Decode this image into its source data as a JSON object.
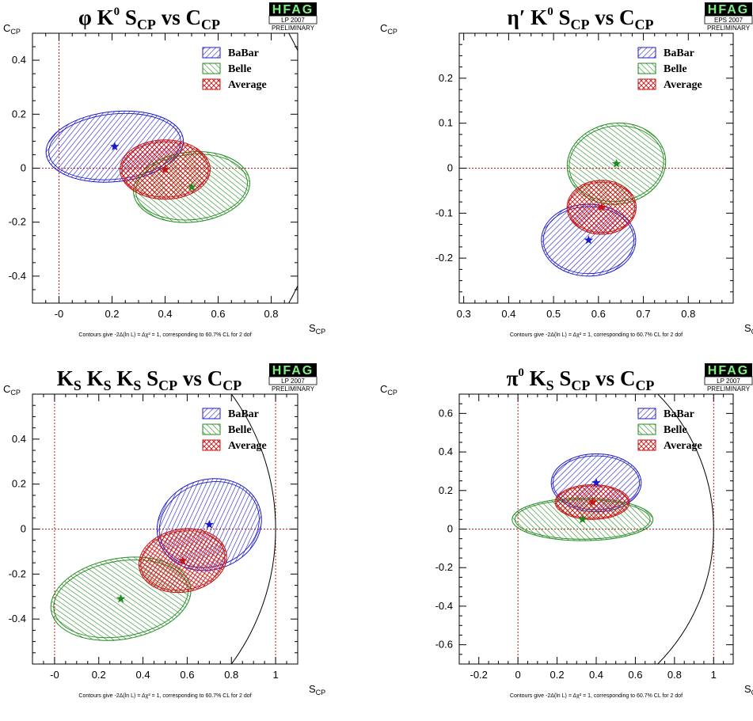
{
  "colors": {
    "babar": "#1a1acc",
    "belle": "#1f8a1f",
    "average": "#c81414",
    "guide": "#c81414"
  },
  "chart_data": [
    {
      "type": "scatter",
      "title": {
        "main": "φ K",
        "sup": "0",
        "s": "S",
        "s_sub": "CP",
        "vs": " vs ",
        "c": "C",
        "c_sub": "CP"
      },
      "badge": {
        "logo": "HFAG",
        "conf": "LP 2007",
        "status": "PRELIMINARY"
      },
      "xlabel": {
        "main": "S",
        "sub": "CP"
      },
      "ylabel": {
        "main": "C",
        "sub": "CP"
      },
      "xlim": [
        -0.1,
        0.9
      ],
      "ylim": [
        -0.5,
        0.5
      ],
      "xticks": [
        {
          "v": 0,
          "label": "-0"
        },
        {
          "v": 0.2,
          "label": "0.2"
        },
        {
          "v": 0.4,
          "label": "0.4"
        },
        {
          "v": 0.6,
          "label": "0.6"
        },
        {
          "v": 0.8,
          "label": "0.8"
        }
      ],
      "yticks": [
        {
          "v": -0.4,
          "label": "-0.4"
        },
        {
          "v": -0.2,
          "label": "-0.2"
        },
        {
          "v": 0,
          "label": "0"
        },
        {
          "v": 0.2,
          "label": "0.2"
        },
        {
          "v": 0.4,
          "label": "0.4"
        }
      ],
      "guide_lines": {
        "x": [
          0
        ],
        "y": [
          0
        ]
      },
      "unit_circle": true,
      "legend": [
        "BaBar",
        "Belle",
        "Average"
      ],
      "series": [
        {
          "name": "BaBar",
          "center": [
            0.21,
            0.08
          ],
          "rx": 0.26,
          "ry": 0.13,
          "tilt_deg": -6
        },
        {
          "name": "Belle",
          "center": [
            0.5,
            -0.07
          ],
          "rx": 0.22,
          "ry": 0.13,
          "tilt_deg": -6
        },
        {
          "name": "Average",
          "center": [
            0.4,
            -0.005
          ],
          "rx": 0.17,
          "ry": 0.11,
          "tilt_deg": 0
        }
      ],
      "note": "Contours give -2Δ(ln L) = Δχ² = 1, corresponding to 60.7% CL for 2 dof"
    },
    {
      "type": "scatter",
      "title": {
        "main": "η′ K",
        "sup": "0",
        "s": "S",
        "s_sub": "CP",
        "vs": " vs ",
        "c": "C",
        "c_sub": "CP"
      },
      "badge": {
        "logo": "HFAG",
        "conf": "EPS 2007",
        "status": "PRELIMINARY"
      },
      "xlabel": {
        "main": "S",
        "sub": "CP"
      },
      "ylabel": {
        "main": "C",
        "sub": "CP"
      },
      "xlim": [
        0.29,
        0.9
      ],
      "ylim": [
        -0.3,
        0.3
      ],
      "xticks": [
        {
          "v": 0.3,
          "label": "0.3"
        },
        {
          "v": 0.4,
          "label": "0.4"
        },
        {
          "v": 0.5,
          "label": "0.5"
        },
        {
          "v": 0.6,
          "label": "0.6"
        },
        {
          "v": 0.7,
          "label": "0.7"
        },
        {
          "v": 0.8,
          "label": "0.8"
        }
      ],
      "yticks": [
        {
          "v": -0.2,
          "label": "-0.2"
        },
        {
          "v": -0.1,
          "label": "-0.1"
        },
        {
          "v": 0,
          "label": "0"
        },
        {
          "v": 0.1,
          "label": "0.1"
        },
        {
          "v": 0.2,
          "label": "0.2"
        }
      ],
      "guide_lines": {
        "x": [],
        "y": [
          0
        ]
      },
      "unit_circle": false,
      "legend": [
        "BaBar",
        "Belle",
        "Average"
      ],
      "series": [
        {
          "name": "BaBar",
          "center": [
            0.578,
            -0.16
          ],
          "rx": 0.105,
          "ry": 0.08,
          "tilt_deg": 0
        },
        {
          "name": "Belle",
          "center": [
            0.64,
            0.01
          ],
          "rx": 0.11,
          "ry": 0.09,
          "tilt_deg": -8
        },
        {
          "name": "Average",
          "center": [
            0.607,
            -0.087
          ],
          "rx": 0.077,
          "ry": 0.06,
          "tilt_deg": 0
        }
      ],
      "note": "Contours give -2Δ(ln L) = Δχ² = 1, corresponding to 60.7% CL for 2 dof"
    },
    {
      "type": "scatter",
      "title": {
        "main": "K",
        "main_sub": "S",
        "mid": " K",
        "mid_sub": "S",
        "mid2": " K",
        "mid2_sub": "S",
        "s": " S",
        "s_sub": "CP",
        "vs": " vs ",
        "c": "C",
        "c_sub": "CP"
      },
      "badge": {
        "logo": "HFAG",
        "conf": "LP 2007",
        "status": "PRELIMINARY"
      },
      "xlabel": {
        "main": "S",
        "sub": "CP"
      },
      "ylabel": {
        "main": "C",
        "sub": "CP"
      },
      "xlim": [
        -0.1,
        1.1
      ],
      "ylim": [
        -0.6,
        0.6
      ],
      "xticks": [
        {
          "v": 0,
          "label": "-0"
        },
        {
          "v": 0.2,
          "label": "0.2"
        },
        {
          "v": 0.4,
          "label": "0.4"
        },
        {
          "v": 0.6,
          "label": "0.6"
        },
        {
          "v": 0.8,
          "label": "0.8"
        },
        {
          "v": 1,
          "label": "1"
        }
      ],
      "yticks": [
        {
          "v": -0.4,
          "label": "-0.4"
        },
        {
          "v": -0.2,
          "label": "-0.2"
        },
        {
          "v": 0,
          "label": "0"
        },
        {
          "v": 0.2,
          "label": "0.2"
        },
        {
          "v": 0.4,
          "label": "0.4"
        }
      ],
      "guide_lines": {
        "x": [
          0,
          1
        ],
        "y": [
          0
        ]
      },
      "unit_circle": true,
      "legend": [
        "BaBar",
        "Belle",
        "Average"
      ],
      "series": [
        {
          "name": "BaBar",
          "center": [
            0.7,
            0.02
          ],
          "rx": 0.24,
          "ry": 0.2,
          "tilt_deg": -20
        },
        {
          "name": "Belle",
          "center": [
            0.3,
            -0.31
          ],
          "rx": 0.32,
          "ry": 0.18,
          "tilt_deg": -10
        },
        {
          "name": "Average",
          "center": [
            0.58,
            -0.14
          ],
          "rx": 0.2,
          "ry": 0.14,
          "tilt_deg": -10
        }
      ],
      "note": "Contours give -2Δ(ln L) = Δχ² = 1, corresponding to 60.7% CL for 2 dof"
    },
    {
      "type": "scatter",
      "title": {
        "main": "π",
        "sup": "0",
        "mid": " K",
        "mid_sub": "S",
        "s": " S",
        "s_sub": "CP",
        "vs": " vs ",
        "c": "C",
        "c_sub": "CP"
      },
      "badge": {
        "logo": "HFAG",
        "conf": "LP 2007",
        "status": "PRELIMINARY"
      },
      "xlabel": {
        "main": "S",
        "sub": "CP"
      },
      "ylabel": {
        "main": "C",
        "sub": "CP"
      },
      "xlim": [
        -0.3,
        1.1
      ],
      "ylim": [
        -0.7,
        0.7
      ],
      "xticks": [
        {
          "v": -0.2,
          "label": "-0.2"
        },
        {
          "v": 0,
          "label": "0"
        },
        {
          "v": 0.2,
          "label": "0.2"
        },
        {
          "v": 0.4,
          "label": "0.4"
        },
        {
          "v": 0.6,
          "label": "0.6"
        },
        {
          "v": 0.8,
          "label": "0.8"
        },
        {
          "v": 1,
          "label": "1"
        }
      ],
      "yticks": [
        {
          "v": -0.6,
          "label": "-0.6"
        },
        {
          "v": -0.4,
          "label": "-0.4"
        },
        {
          "v": -0.2,
          "label": "-0.2"
        },
        {
          "v": 0,
          "label": "0"
        },
        {
          "v": 0.2,
          "label": "0.2"
        },
        {
          "v": 0.4,
          "label": "0.4"
        },
        {
          "v": 0.6,
          "label": "0.6"
        }
      ],
      "guide_lines": {
        "x": [
          0,
          1
        ],
        "y": [
          0
        ]
      },
      "unit_circle": true,
      "legend": [
        "BaBar",
        "Belle",
        "Average"
      ],
      "series": [
        {
          "name": "BaBar",
          "center": [
            0.4,
            0.24
          ],
          "rx": 0.23,
          "ry": 0.15,
          "tilt_deg": 0
        },
        {
          "name": "Belle",
          "center": [
            0.33,
            0.05
          ],
          "rx": 0.36,
          "ry": 0.11,
          "tilt_deg": 0
        },
        {
          "name": "Average",
          "center": [
            0.38,
            0.14
          ],
          "rx": 0.19,
          "ry": 0.09,
          "tilt_deg": 0
        }
      ],
      "note": "Contours give -2Δ(ln L) = Δχ² = 1, corresponding to 60.7% CL for 2 dof"
    }
  ]
}
